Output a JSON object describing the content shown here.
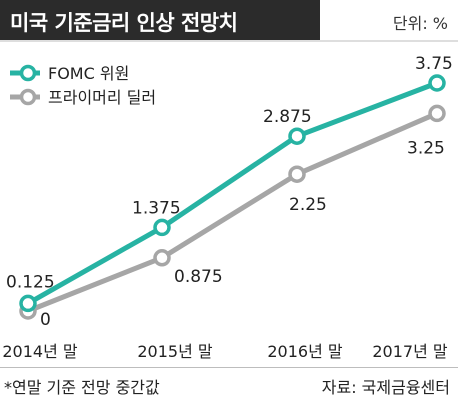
{
  "header": {
    "title": "미국 기준금리 인상 전망치",
    "unit": "단위: %"
  },
  "footer": {
    "note": "*연말 기준 전망 중간값",
    "source": "자료: 국제금융센터"
  },
  "colors": {
    "fomc": "#27b3a3",
    "dealer": "#a6a6a6",
    "title_bg": "#2b2b2b"
  },
  "chart_data": {
    "type": "line",
    "categories": [
      "2014년 말",
      "2015년 말",
      "2016년 말",
      "2017년 말"
    ],
    "series": [
      {
        "name": "FOMC 위원",
        "values": [
          0.125,
          1.375,
          2.875,
          3.75
        ],
        "labels": [
          "0.125",
          "1.375",
          "2.875",
          "3.75"
        ],
        "color": "#27b3a3"
      },
      {
        "name": "프라이머리 딜러",
        "values": [
          0,
          0.875,
          2.25,
          3.25
        ],
        "labels": [
          "0",
          "0.875",
          "2.25",
          "3.25"
        ],
        "color": "#a6a6a6"
      }
    ],
    "ylim": [
      0,
      3.75
    ],
    "grid": false,
    "legend": "top-left"
  }
}
